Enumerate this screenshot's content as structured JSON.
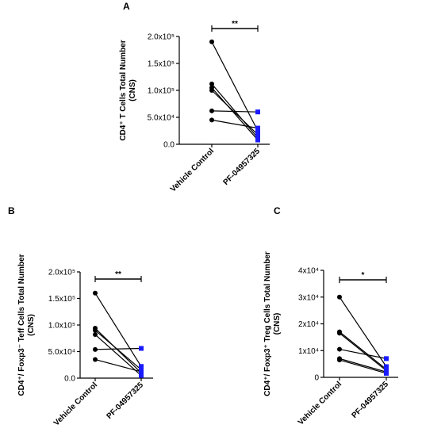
{
  "chart_data": [
    {
      "panel": "A",
      "type": "scatter",
      "ylabel_lines": [
        "CD4⁺ T Cells Total Number",
        "(CNS)"
      ],
      "categories": [
        "Vehicle Control",
        "PF-04957325"
      ],
      "ylim": [
        0,
        200000
      ],
      "yticks": [
        "0.0",
        "5.0x10⁴",
        "1.0x10⁵",
        "1.5x10⁵",
        "2.0x10⁵"
      ],
      "significance": "**",
      "colors": {
        "vehicle": "#000000",
        "treatment": "#1a1aff"
      },
      "pairs": [
        [
          190000,
          25000
        ],
        [
          112000,
          12000
        ],
        [
          105000,
          8000
        ],
        [
          100000,
          18000
        ],
        [
          62000,
          60000
        ],
        [
          45000,
          30000
        ]
      ]
    },
    {
      "panel": "B",
      "type": "scatter",
      "ylabel_lines": [
        "CD4⁺/ Foxp3⁻ Teff Cells Total Number",
        "(CNS)"
      ],
      "categories": [
        "Vehicle Control",
        "PF-04957325"
      ],
      "ylim": [
        0,
        200000
      ],
      "yticks": [
        "0.0",
        "5.0x10⁴",
        "1.0x10⁵",
        "1.5x10⁵",
        "2.0x10⁵"
      ],
      "significance": "**",
      "colors": {
        "vehicle": "#000000",
        "treatment": "#1a1aff"
      },
      "pairs": [
        [
          160000,
          22000
        ],
        [
          94000,
          10000
        ],
        [
          90000,
          16000
        ],
        [
          82000,
          5000
        ],
        [
          54000,
          56000
        ],
        [
          35000,
          12000
        ]
      ]
    },
    {
      "panel": "C",
      "type": "scatter",
      "ylabel_lines": [
        "CD4⁺/ Foxp3⁺ Treg Cells Total Number",
        "(CNS)"
      ],
      "categories": [
        "Vehicle Control",
        "PF-04957325"
      ],
      "ylim": [
        0,
        40000
      ],
      "yticks": [
        "0",
        "1x10⁴",
        "2x10⁴",
        "3x10⁴",
        "4x10⁴"
      ],
      "significance": "*",
      "colors": {
        "vehicle": "#000000",
        "treatment": "#1a1aff"
      },
      "pairs": [
        [
          30000,
          4000
        ],
        [
          17000,
          3000
        ],
        [
          16500,
          2500
        ],
        [
          10500,
          7000
        ],
        [
          7000,
          2000
        ],
        [
          6500,
          1500
        ]
      ]
    }
  ]
}
